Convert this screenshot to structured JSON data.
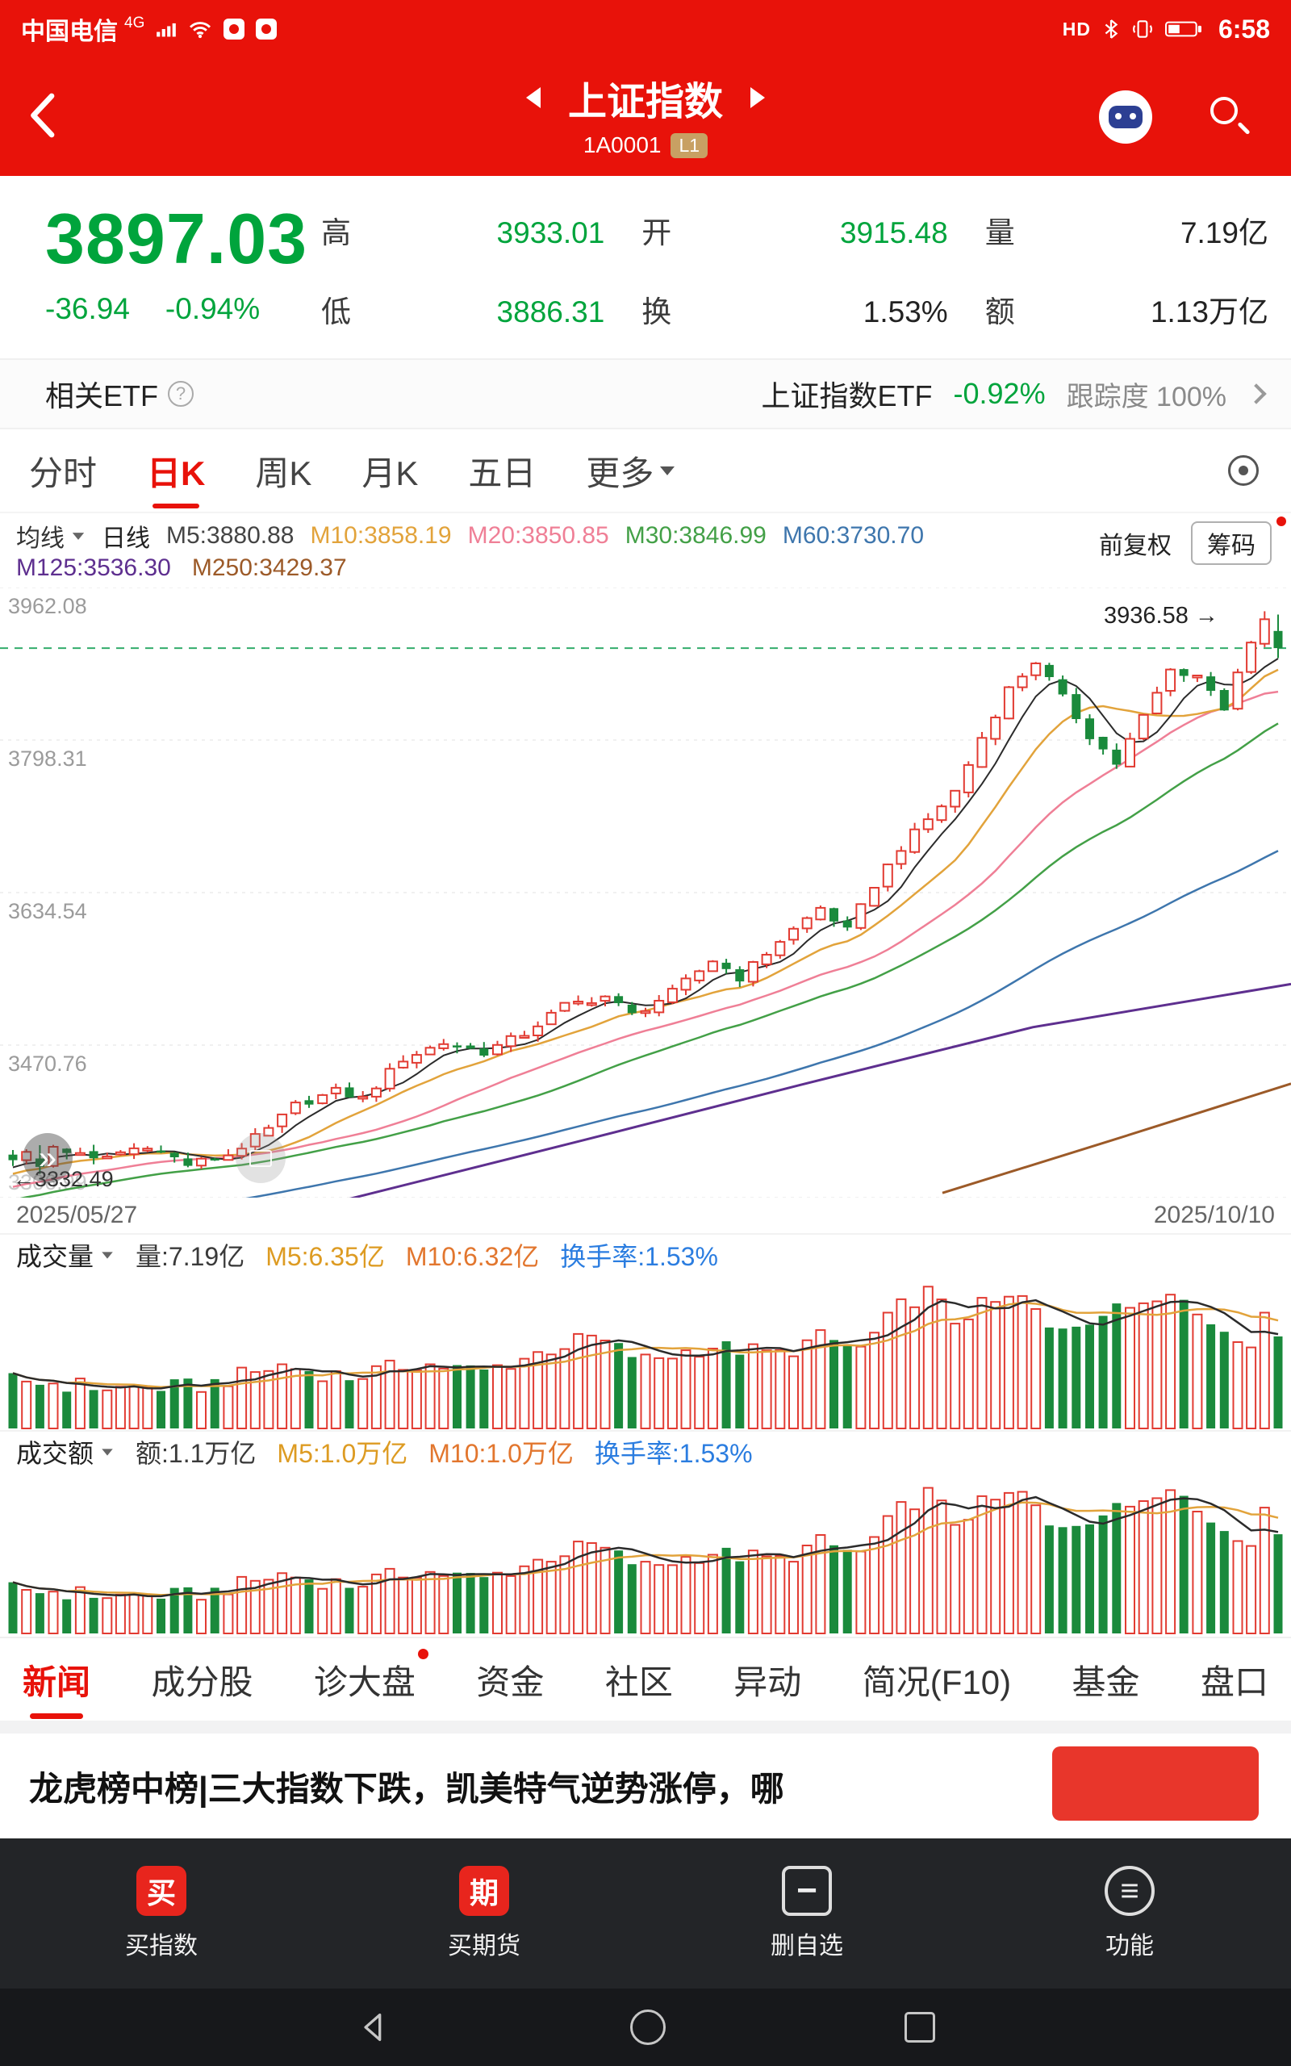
{
  "colors": {
    "red": "#e8120a",
    "green": "#00a43c",
    "up": "#e23b32",
    "down": "#1a8a3c",
    "m5": "#2b2b2b",
    "m10": "#e2a33b",
    "m20": "#ef7f96",
    "m30": "#43a047",
    "m60": "#3e76ad",
    "m125": "#5e2f8f",
    "m250": "#9c5a28",
    "vol_ma5": "#2b2b2b",
    "vol_ma10": "#e2a33b"
  },
  "status_bar": {
    "carrier": "中国电信",
    "network": "4G",
    "hd": "HD",
    "time": "6:58"
  },
  "nav": {
    "title": "上证指数",
    "code": "1A0001",
    "badge": "L1"
  },
  "quote": {
    "price": "3897.03",
    "change": "-36.94",
    "change_pct": "-0.94%",
    "fields": [
      {
        "label": "高",
        "value": "3933.01",
        "tone": "green"
      },
      {
        "label": "开",
        "value": "3915.48",
        "tone": "green"
      },
      {
        "label": "量",
        "value": "7.19亿",
        "tone": "dark"
      },
      {
        "label": "低",
        "value": "3886.31",
        "tone": "green"
      },
      {
        "label": "换",
        "value": "1.53%",
        "tone": "dark"
      },
      {
        "label": "额",
        "value": "1.13万亿",
        "tone": "dark"
      }
    ]
  },
  "etf_row": {
    "label": "相关ETF",
    "name": "上证指数ETF",
    "change": "-0.92%",
    "tracking": "跟踪度 100%"
  },
  "period_tabs": [
    {
      "label": "分时",
      "active": false,
      "caret": false
    },
    {
      "label": "日K",
      "active": true,
      "caret": false
    },
    {
      "label": "周K",
      "active": false,
      "caret": false
    },
    {
      "label": "月K",
      "active": false,
      "caret": false
    },
    {
      "label": "五日",
      "active": false,
      "caret": false
    },
    {
      "label": "更多",
      "active": false,
      "caret": true
    }
  ],
  "ma_legend": {
    "dropdown": "均线",
    "mode": "日线",
    "row1": [
      {
        "text": "M5:3880.88",
        "color": "#444444"
      },
      {
        "text": "M10:3858.19",
        "color": "#e2a33b"
      },
      {
        "text": "M20:3850.85",
        "color": "#ef7f96"
      },
      {
        "text": "M30:3846.99",
        "color": "#43a047"
      },
      {
        "text": "M60:3730.70",
        "color": "#3e76ad"
      }
    ],
    "row2": [
      {
        "text": "M125:3536.30",
        "color": "#5e2f8f"
      },
      {
        "text": "M250:3429.37",
        "color": "#9c5a28"
      }
    ],
    "adjust": "前复权",
    "chip": "筹码"
  },
  "chart_labels": {
    "high_marker": "3936.58 →",
    "low_marker": "←3332.49",
    "date_start": "2025/05/27",
    "date_end": "2025/10/10"
  },
  "chart_data": {
    "type": "candlestick",
    "days": 95,
    "x_range": [
      "2025/05/27",
      "2025/10/10"
    ],
    "y_min": 3306.99,
    "y_max": 3962.08,
    "gridlines": [
      3962.08,
      3798.31,
      3634.54,
      3470.76,
      3306.99
    ],
    "current_price": 3897.03,
    "high_marker": 3936.58,
    "low_marker": 3332.49,
    "last_candle": {
      "open": 3915.48,
      "high": 3933.01,
      "low": 3886.31,
      "close": 3897.03
    },
    "close_anchors": [
      [
        0,
        3350
      ],
      [
        3,
        3362
      ],
      [
        6,
        3347
      ],
      [
        10,
        3364
      ],
      [
        13,
        3342
      ],
      [
        16,
        3353
      ],
      [
        19,
        3380
      ],
      [
        21,
        3406
      ],
      [
        24,
        3421
      ],
      [
        26,
        3413
      ],
      [
        29,
        3456
      ],
      [
        32,
        3473
      ],
      [
        35,
        3463
      ],
      [
        38,
        3483
      ],
      [
        41,
        3513
      ],
      [
        44,
        3523
      ],
      [
        46,
        3503
      ],
      [
        49,
        3527
      ],
      [
        52,
        3562
      ],
      [
        54,
        3543
      ],
      [
        57,
        3583
      ],
      [
        60,
        3618
      ],
      [
        62,
        3593
      ],
      [
        64,
        3643
      ],
      [
        66,
        3683
      ],
      [
        68,
        3713
      ],
      [
        70,
        3743
      ],
      [
        72,
        3801
      ],
      [
        74,
        3853
      ],
      [
        76,
        3883
      ],
      [
        78,
        3843
      ],
      [
        80,
        3803
      ],
      [
        82,
        3773
      ],
      [
        84,
        3823
      ],
      [
        86,
        3873
      ],
      [
        88,
        3868
      ],
      [
        90,
        3833
      ],
      [
        91,
        3873
      ],
      [
        92,
        3903
      ],
      [
        93,
        3928
      ],
      [
        94,
        3897.03
      ]
    ],
    "pinned": {
      "2": {
        "l": 3332.49,
        "o": 3349,
        "c": 3340
      },
      "93": {
        "h": 3936.58
      },
      "94": {
        "o": 3915.48,
        "h": 3933.01,
        "l": 3886.31,
        "c": 3897.03
      }
    },
    "volume_envelope": [
      [
        0,
        0.34
      ],
      [
        8,
        0.28
      ],
      [
        14,
        0.3
      ],
      [
        20,
        0.44
      ],
      [
        25,
        0.36
      ],
      [
        30,
        0.46
      ],
      [
        35,
        0.4
      ],
      [
        40,
        0.56
      ],
      [
        43,
        0.64
      ],
      [
        47,
        0.48
      ],
      [
        52,
        0.58
      ],
      [
        57,
        0.52
      ],
      [
        60,
        0.64
      ],
      [
        63,
        0.56
      ],
      [
        66,
        0.86
      ],
      [
        68,
        0.96
      ],
      [
        70,
        0.76
      ],
      [
        72,
        0.86
      ],
      [
        75,
        0.92
      ],
      [
        77,
        0.7
      ],
      [
        80,
        0.78
      ],
      [
        83,
        0.86
      ],
      [
        86,
        1.0
      ],
      [
        88,
        0.8
      ],
      [
        90,
        0.7
      ],
      [
        92,
        0.62
      ],
      [
        93,
        0.76
      ],
      [
        94,
        0.7
      ]
    ],
    "ma_windows": [
      5,
      10,
      20,
      30,
      60
    ],
    "ma125_anchors": [
      [
        0.26,
        3302
      ],
      [
        0.45,
        3368
      ],
      [
        0.62,
        3428
      ],
      [
        0.8,
        3490
      ],
      [
        1.0,
        3536.3
      ]
    ],
    "ma250_anchors": [
      [
        0.73,
        3312
      ],
      [
        0.86,
        3368
      ],
      [
        1.0,
        3429.37
      ]
    ],
    "warmup_days": 60,
    "warmup_from": 3180,
    "warmup_to": 3342
  },
  "volume_panel": {
    "title": "成交量",
    "legend": [
      {
        "text": "量:7.19亿",
        "color": "#3a3a3a"
      },
      {
        "text": "M5:6.35亿",
        "color": "#dd9b22"
      },
      {
        "text": "M10:6.32亿",
        "color": "#e2762e"
      },
      {
        "text": "换手率:1.53%",
        "color": "#2b7de0"
      }
    ]
  },
  "amount_panel": {
    "title": "成交额",
    "legend": [
      {
        "text": "额:1.1万亿",
        "color": "#3a3a3a"
      },
      {
        "text": "M5:1.0万亿",
        "color": "#dd9b22"
      },
      {
        "text": "M10:1.0万亿",
        "color": "#e2762e"
      },
      {
        "text": "换手率:1.53%",
        "color": "#2b7de0"
      }
    ]
  },
  "bottom_tabs": [
    {
      "label": "新闻",
      "active": true,
      "dot": false
    },
    {
      "label": "成分股",
      "active": false,
      "dot": false
    },
    {
      "label": "诊大盘",
      "active": false,
      "dot": true
    },
    {
      "label": "资金",
      "active": false,
      "dot": false
    },
    {
      "label": "社区",
      "active": false,
      "dot": false
    },
    {
      "label": "异动",
      "active": false,
      "dot": false
    },
    {
      "label": "简况(F10)",
      "active": false,
      "dot": false
    },
    {
      "label": "基金",
      "active": false,
      "dot": false
    },
    {
      "label": "盘口",
      "active": false,
      "dot": false
    }
  ],
  "news": {
    "headline": "龙虎榜中榜|三大指数下跌，凯美特气逆势涨停，哪"
  },
  "bottom_nav": [
    {
      "label": "买指数",
      "icon": "buy-index-icon",
      "glyph": "买",
      "style": "solid"
    },
    {
      "label": "买期货",
      "icon": "buy-futures-icon",
      "glyph": "期",
      "style": "solid"
    },
    {
      "label": "删自选",
      "icon": "remove-watchlist-icon",
      "glyph": "−",
      "style": "outline"
    },
    {
      "label": "功能",
      "icon": "functions-icon",
      "glyph": "≡",
      "style": "circle"
    }
  ]
}
